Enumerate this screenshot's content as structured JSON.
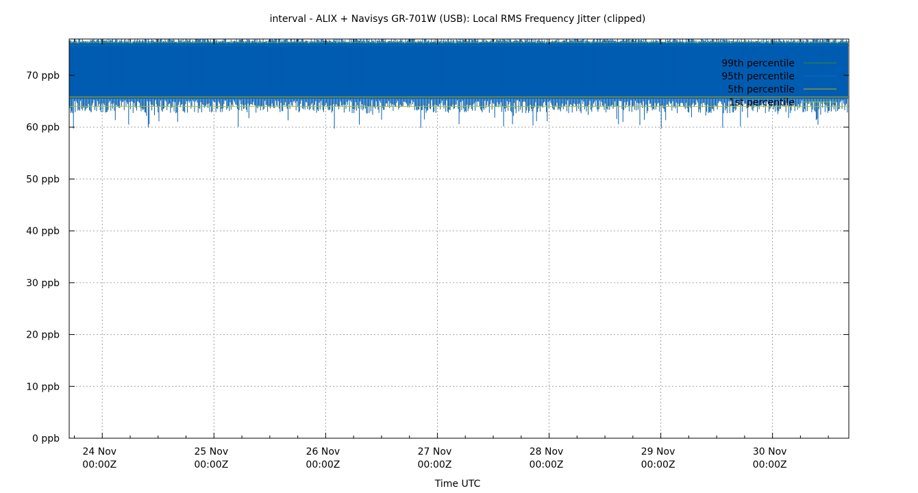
{
  "chart_data": {
    "type": "line",
    "title": "interval - ALIX + Navisys GR-701W (USB): Local RMS Frequency Jitter (clipped)",
    "xlabel": "Time UTC",
    "ylabel": "",
    "ylim": [
      0,
      77
    ],
    "xlim": [
      -0.296,
      6.683
    ],
    "y_ticks": [
      {
        "value": 0,
        "label": "0 ppb"
      },
      {
        "value": 10,
        "label": "10 ppb"
      },
      {
        "value": 20,
        "label": "20 ppb"
      },
      {
        "value": 30,
        "label": "30 ppb"
      },
      {
        "value": 40,
        "label": "40 ppb"
      },
      {
        "value": 50,
        "label": "50 ppb"
      },
      {
        "value": 60,
        "label": "60 ppb"
      },
      {
        "value": 70,
        "label": "70 ppb"
      }
    ],
    "x_ticks": [
      {
        "value": 0,
        "day": "24 Nov",
        "time": "00:00Z"
      },
      {
        "value": 1,
        "day": "25 Nov",
        "time": "00:00Z"
      },
      {
        "value": 2,
        "day": "26 Nov",
        "time": "00:00Z"
      },
      {
        "value": 3,
        "day": "27 Nov",
        "time": "00:00Z"
      },
      {
        "value": 4,
        "day": "28 Nov",
        "time": "00:00Z"
      },
      {
        "value": 5,
        "day": "29 Nov",
        "time": "00:00Z"
      },
      {
        "value": 6,
        "day": "30 Nov",
        "time": "00:00Z"
      }
    ],
    "grid": true,
    "legend_position": "top-right",
    "series": [
      {
        "name": "",
        "color": "#005cb0",
        "kind": "jitter-band",
        "low": 65.5,
        "high": 76.2,
        "spike_min": 60.0,
        "note_clipped_at": 77
      },
      {
        "name": "99th percentile",
        "color": "#3a8a2a",
        "value": 76.4
      },
      {
        "name": "95th percentile",
        "color": "#0070c0",
        "value": 75.8
      },
      {
        "name": "5th percentile",
        "color": "#c8b400",
        "value": 65.8
      },
      {
        "name": "1st percentile",
        "color": "#b0c000",
        "value": 64.0
      }
    ]
  }
}
